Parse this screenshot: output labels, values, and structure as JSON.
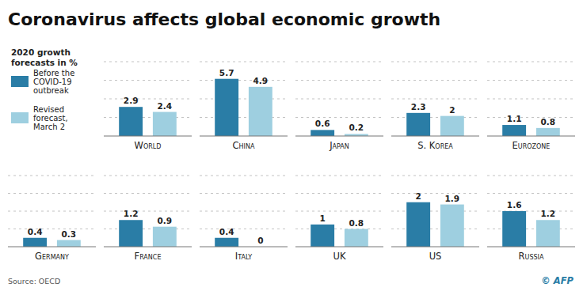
{
  "chart_data": [
    {
      "type": "bar",
      "title": "Coronavirus affects global economic growth",
      "subtitle": "2020 growth\nforecasts in %",
      "categories": [
        "World",
        "China",
        "Japan",
        "S. Korea",
        "Eurozone"
      ],
      "series": [
        {
          "name": "Before the\nCOVID-19\noutbreak",
          "color": "#2a7da6",
          "values": [
            2.9,
            5.7,
            0.6,
            2.3,
            1.1
          ]
        },
        {
          "name": "Revised\nforecast,\nMarch 2",
          "color": "#9ecfe0",
          "values": [
            2.4,
            4.9,
            0.2,
            2,
            0.8
          ]
        }
      ],
      "ylim": [
        0,
        7.41
      ],
      "yticks": [
        0,
        1.8525,
        3.705,
        5.5575,
        7.41
      ],
      "grid": true,
      "legend": "left",
      "data_labels": true,
      "tick_labels": "x"
    },
    {
      "type": "bar",
      "categories": [
        "Germany",
        "France",
        "Italy",
        "UK",
        "US",
        "Russia"
      ],
      "series": [
        {
          "color": "#2a7da6",
          "values": [
            0.4,
            1.2,
            0.4,
            1,
            2,
            1.6
          ]
        },
        {
          "color": "#9ecfe0",
          "values": [
            0.3,
            0.9,
            0,
            0.8,
            1.9,
            1.2
          ]
        }
      ],
      "ylim": [
        0,
        3.2
      ],
      "yticks": [
        0,
        0.8,
        1.6,
        2.4,
        3.2
      ],
      "grid": true,
      "data_labels": true,
      "tick_labels": "x",
      "annotations": [
        "Source: OECD",
        "© AFP"
      ]
    }
  ]
}
